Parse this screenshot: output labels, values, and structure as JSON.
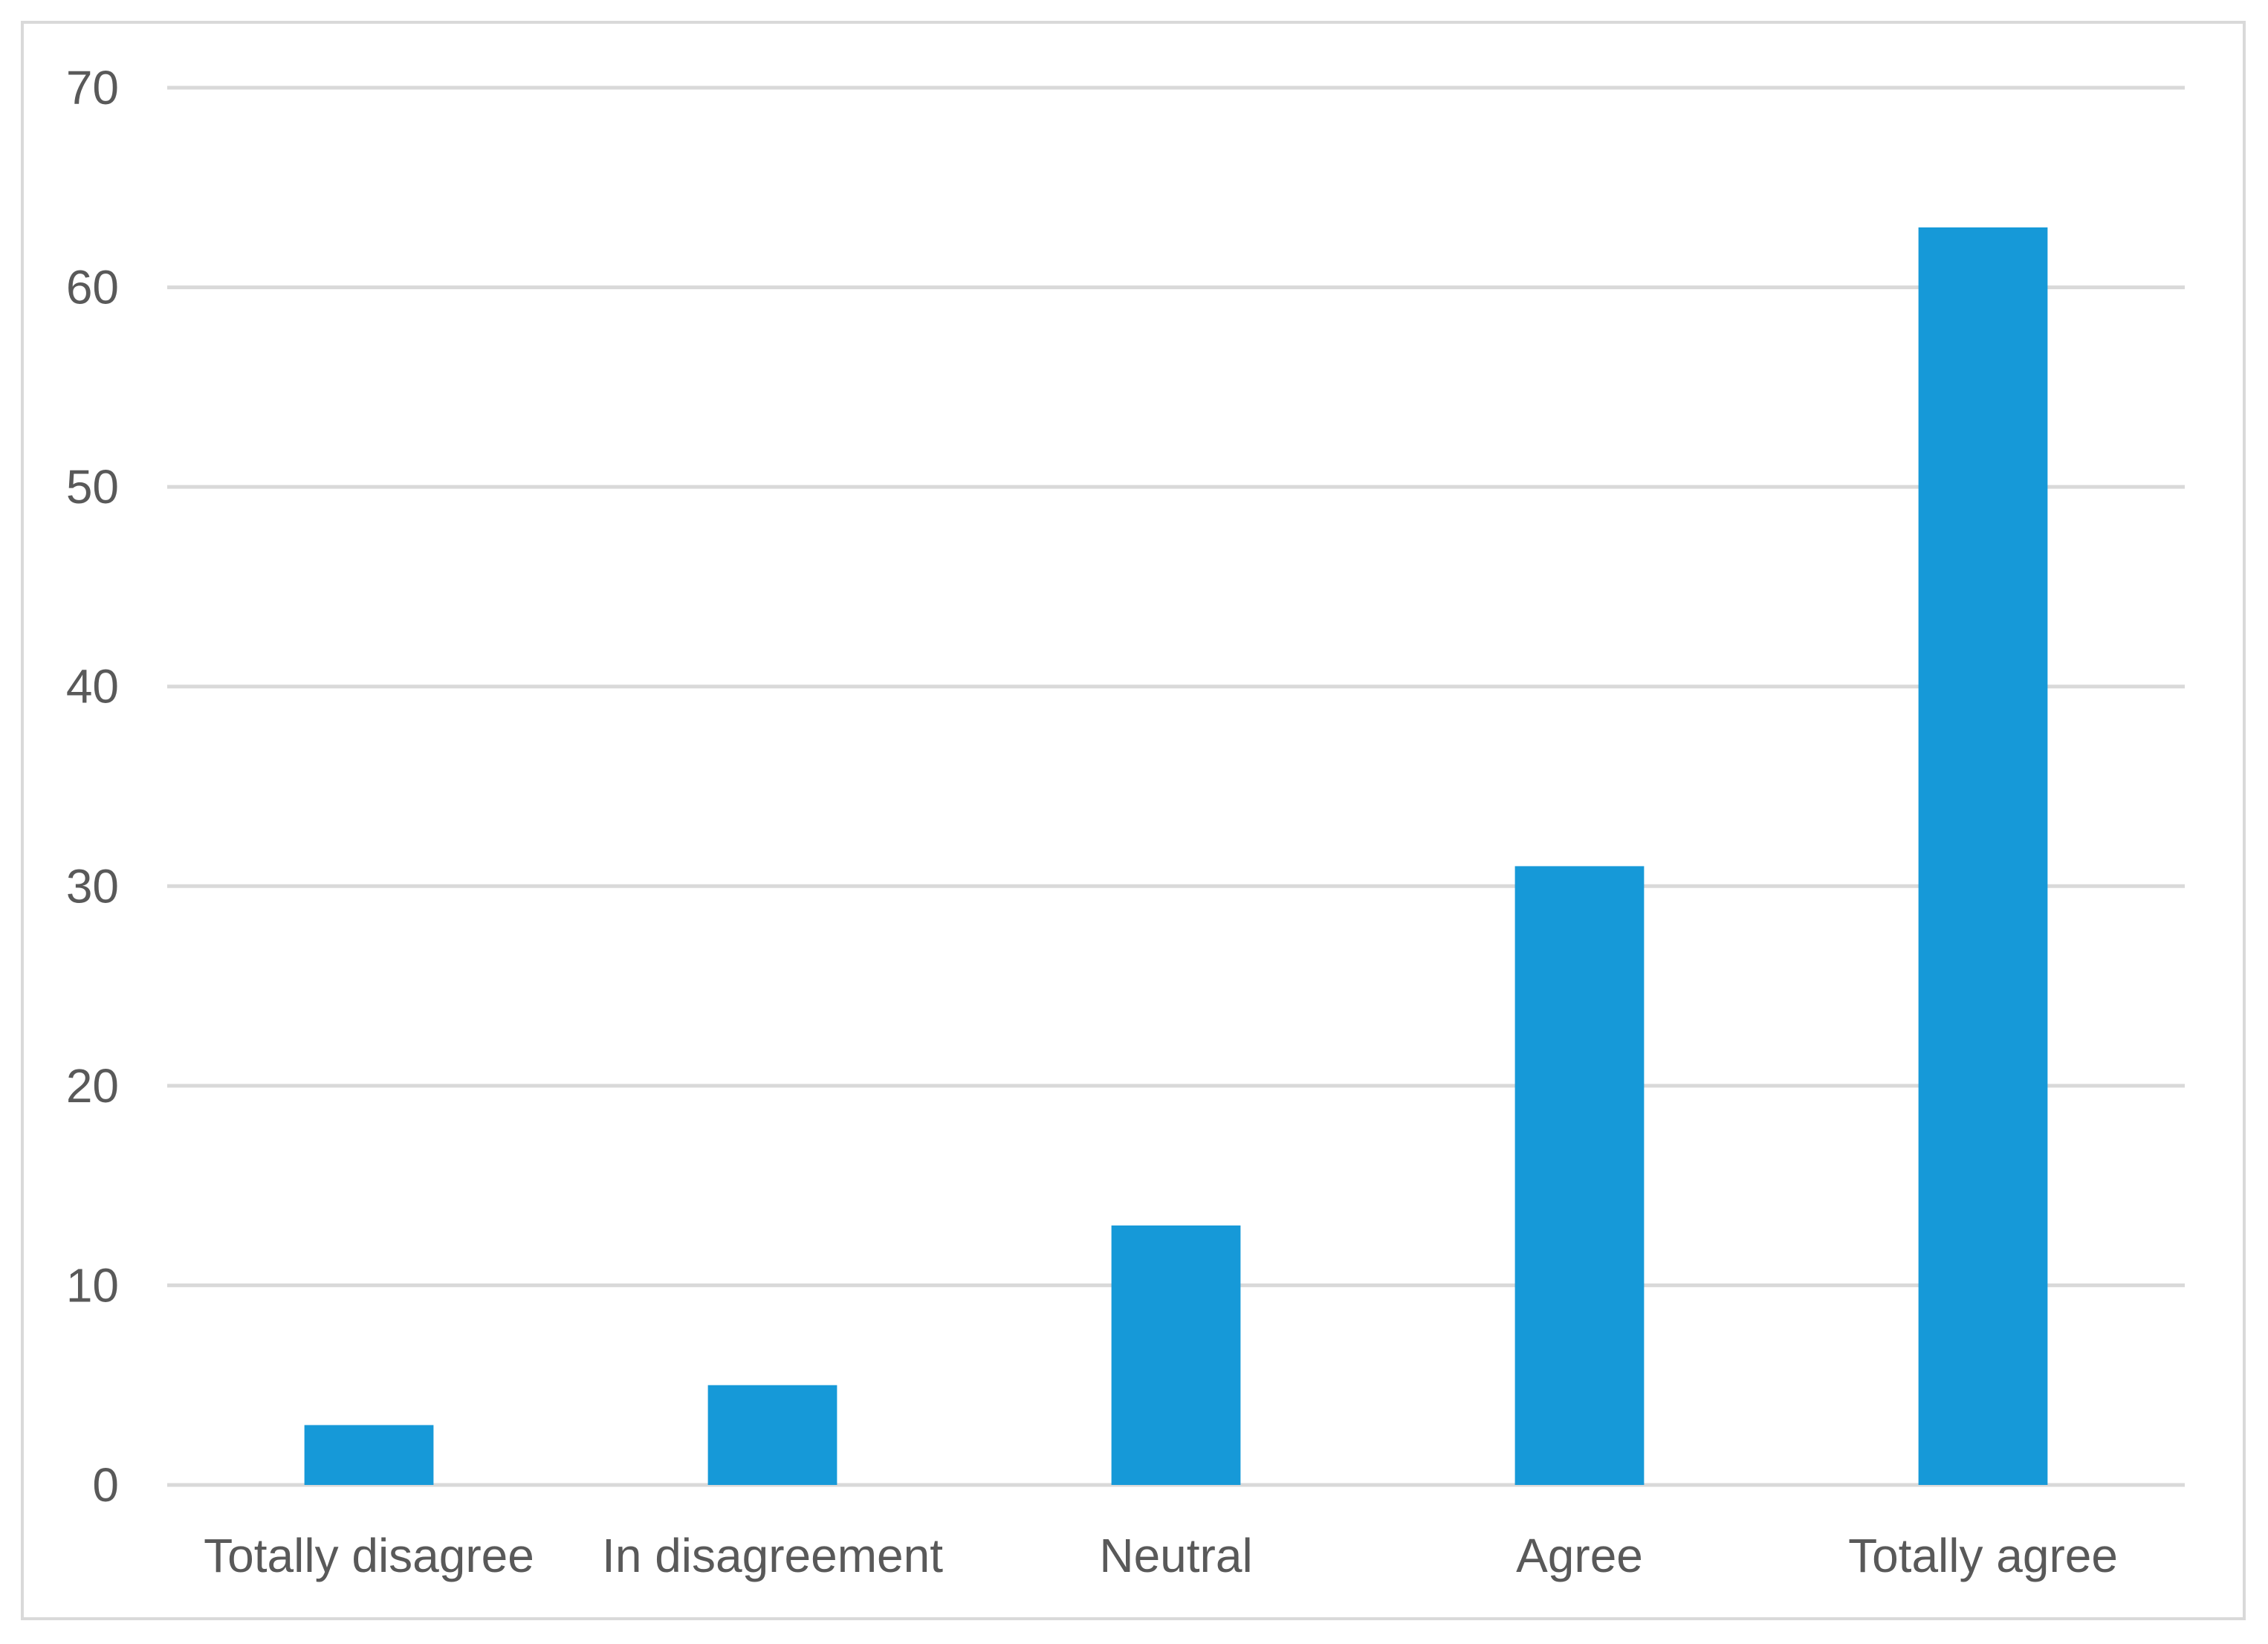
{
  "chart_data": {
    "type": "bar",
    "categories": [
      "Totally disagree",
      "In disagreement",
      "Neutral",
      "Agree",
      "Totally agree"
    ],
    "values": [
      3,
      5,
      13,
      31,
      63
    ],
    "title": "",
    "xlabel": "",
    "ylabel": "",
    "ylim": [
      0,
      70
    ],
    "yticks": [
      0,
      10,
      20,
      30,
      40,
      50,
      60,
      70
    ],
    "grid": true,
    "legend": "none",
    "colors": {
      "bar": "#1699d8",
      "grid": "#d9d9d9",
      "text": "#595959"
    }
  }
}
